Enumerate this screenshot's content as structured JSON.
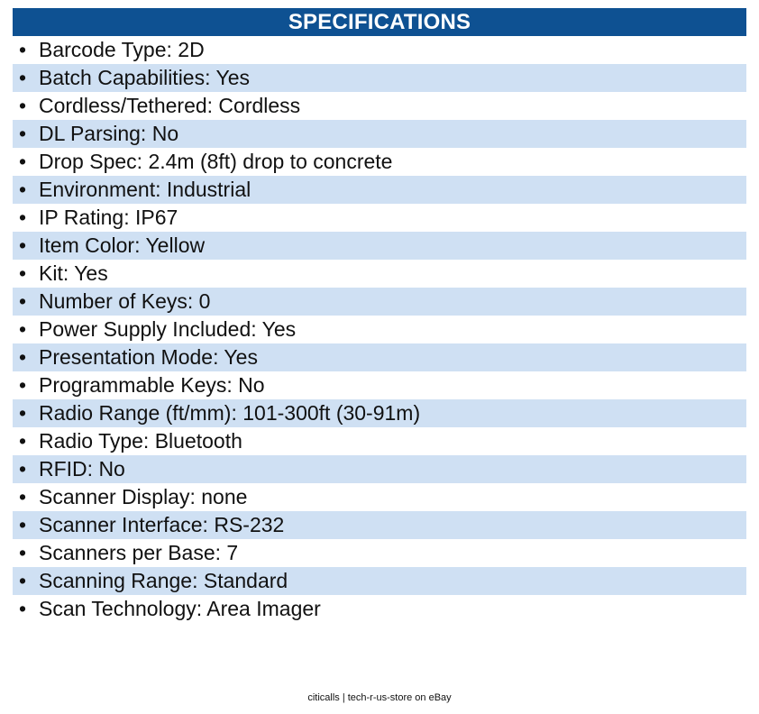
{
  "header": {
    "title": "SPECIFICATIONS"
  },
  "specs": [
    "Barcode Type: 2D",
    "Batch Capabilities: Yes",
    "Cordless/Tethered: Cordless",
    "DL Parsing: No",
    "Drop Spec: 2.4m (8ft) drop to concrete",
    "Environment: Industrial",
    "IP Rating: IP67",
    "Item Color: Yellow",
    "Kit: Yes",
    "Number of Keys: 0",
    "Power Supply Included: Yes",
    "Presentation Mode: Yes",
    "Programmable Keys: No",
    "Radio Range (ft/mm): 101-300ft (30-91m)",
    "Radio Type: Bluetooth",
    "RFID: No",
    "Scanner Display: none",
    "Scanner Interface: RS-232",
    "Scanners per Base: 7",
    "Scanning Range: Standard",
    "Scan Technology: Area Imager"
  ],
  "footer": {
    "text": "citicalls | tech-r-us-store on eBay"
  },
  "colors": {
    "header_bg": "#0e5192",
    "row_alt_bg": "#cfe0f3"
  }
}
